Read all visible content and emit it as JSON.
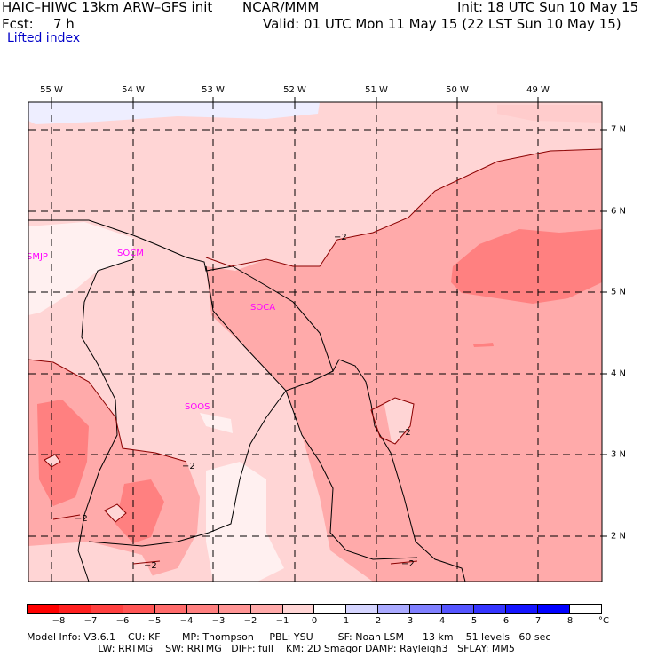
{
  "header": {
    "model_title": "HAIC–HIWC 13km ARW–GFS init",
    "org": "NCAR/MMM",
    "init": "Init: 18 UTC Sun 10 May 15",
    "fcst_label": "Fcst:",
    "fcst_hours": "7 h",
    "valid": "Valid: 01 UTC Mon 11 May 15 (22 LST Sun 10 May 15)",
    "field": "Lifted index"
  },
  "map": {
    "lon_labels": [
      "55 W",
      "54 W",
      "53 W",
      "52 W",
      "51 W",
      "50 W",
      "49 W"
    ],
    "lat_labels": [
      "7 N",
      "6 N",
      "5 N",
      "4 N",
      "3 N",
      "2 N"
    ],
    "stations": [
      "SMJP",
      "SOCM",
      "SOCA",
      "SOOS"
    ],
    "contour_label": "−2",
    "colors": {
      "light_pink": "#ffd5d5",
      "mid_pink": "#ffaaaa",
      "dark_pink": "#ff8080",
      "near_white": "#fff0f0",
      "pale_blue": "#eeeeff",
      "station": "#ff00ff"
    }
  },
  "colorbar": {
    "ticks": [
      "−8",
      "−7",
      "−6",
      "−5",
      "−4",
      "−3",
      "−2",
      "−1",
      "0",
      "1",
      "2",
      "3",
      "4",
      "5",
      "6",
      "7",
      "8"
    ],
    "unit": "°C",
    "colors": [
      "#ff0000",
      "#ff2020",
      "#ff4040",
      "#ff5555",
      "#ff6b6b",
      "#ff8080",
      "#ff9595",
      "#ffaaaa",
      "#ffd5d5",
      "#ffffff",
      "#d5d5ff",
      "#aaaaff",
      "#8080ff",
      "#5555ff",
      "#3535ff",
      "#1515ff",
      "#0000ff"
    ]
  },
  "footer": {
    "line1": "Model Info: V3.6.1    CU: KF       MP: Thompson     PBL: YSU        SF: Noah LSM      13 km    51 levels   60 sec",
    "line2": "                       LW: RRTMG    SW: RRTMG   DIFF: full    KM: 2D Smagor DAMP: Rayleigh3   SFLAY: MM5"
  }
}
